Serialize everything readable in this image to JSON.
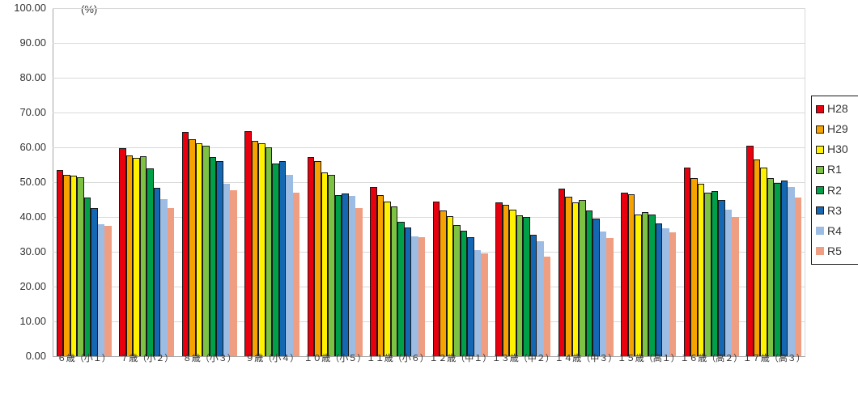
{
  "unit_label": "(%)",
  "colors": {
    "grid": "#d9d9d9",
    "axis": "#a6a6a6",
    "bar_outline": "#1a1a1a",
    "text": "#404040"
  },
  "chart_data": {
    "type": "bar",
    "title": "",
    "xlabel": "",
    "ylabel": "(%)",
    "ylim": [
      0,
      100
    ],
    "y_tick_step": 10,
    "y_tick_labels": [
      "100.00",
      "90.00",
      "80.00",
      "70.00",
      "60.00",
      "50.00",
      "40.00",
      "30.00",
      "20.00",
      "10.00",
      "0.00"
    ],
    "grid": true,
    "legend_position": "right",
    "categories": [
      "６歳（小１）",
      "７歳（小２）",
      "８歳（小３）",
      "９歳（小４）",
      "１０歳（小５）",
      "１１歳（小６）",
      "１２歳（中１）",
      "１３歳（中２）",
      "１４歳（中３）",
      "１５歳（高１）",
      "１６歳（高２）",
      "１７歳（高３）"
    ],
    "series": [
      {
        "name": "H28",
        "color": "#e8000e",
        "outlined": true,
        "values": [
          53.5,
          59.7,
          64.5,
          64.6,
          57.2,
          48.7,
          44.5,
          44.1,
          48.2,
          47.0,
          54.3,
          60.4
        ]
      },
      {
        "name": "H29",
        "color": "#f6a200",
        "outlined": true,
        "values": [
          52.2,
          57.6,
          62.4,
          61.9,
          56.0,
          46.2,
          41.8,
          43.5,
          45.8,
          46.6,
          51.2,
          56.6
        ]
      },
      {
        "name": "H30",
        "color": "#fff100",
        "outlined": true,
        "values": [
          51.8,
          57.0,
          61.2,
          61.1,
          52.9,
          44.4,
          40.3,
          42.0,
          44.3,
          40.8,
          49.6,
          54.2
        ]
      },
      {
        "name": "R1",
        "color": "#7dc243",
        "outlined": true,
        "values": [
          51.5,
          57.4,
          60.5,
          60.0,
          52.1,
          43.1,
          37.7,
          40.4,
          44.8,
          41.3,
          47.0,
          51.1
        ]
      },
      {
        "name": "R2",
        "color": "#00a049",
        "outlined": true,
        "values": [
          45.6,
          54.0,
          57.1,
          55.3,
          46.2,
          38.5,
          36.1,
          40.0,
          41.8,
          40.6,
          47.5,
          49.7
        ]
      },
      {
        "name": "R3",
        "color": "#1467b2",
        "outlined": true,
        "values": [
          42.6,
          48.4,
          56.1,
          56.0,
          46.8,
          36.9,
          34.2,
          35.0,
          39.6,
          38.2,
          44.8,
          50.5
        ]
      },
      {
        "name": "R4",
        "color": "#9cbce4",
        "outlined": false,
        "values": [
          37.8,
          45.1,
          49.6,
          52.0,
          46.0,
          34.4,
          30.5,
          33.1,
          35.9,
          36.7,
          42.2,
          48.5
        ]
      },
      {
        "name": "R5",
        "color": "#f09e82",
        "outlined": false,
        "values": [
          37.5,
          42.6,
          47.6,
          46.9,
          42.5,
          34.2,
          29.6,
          28.5,
          34.0,
          35.5,
          39.9,
          45.7
        ]
      }
    ]
  }
}
